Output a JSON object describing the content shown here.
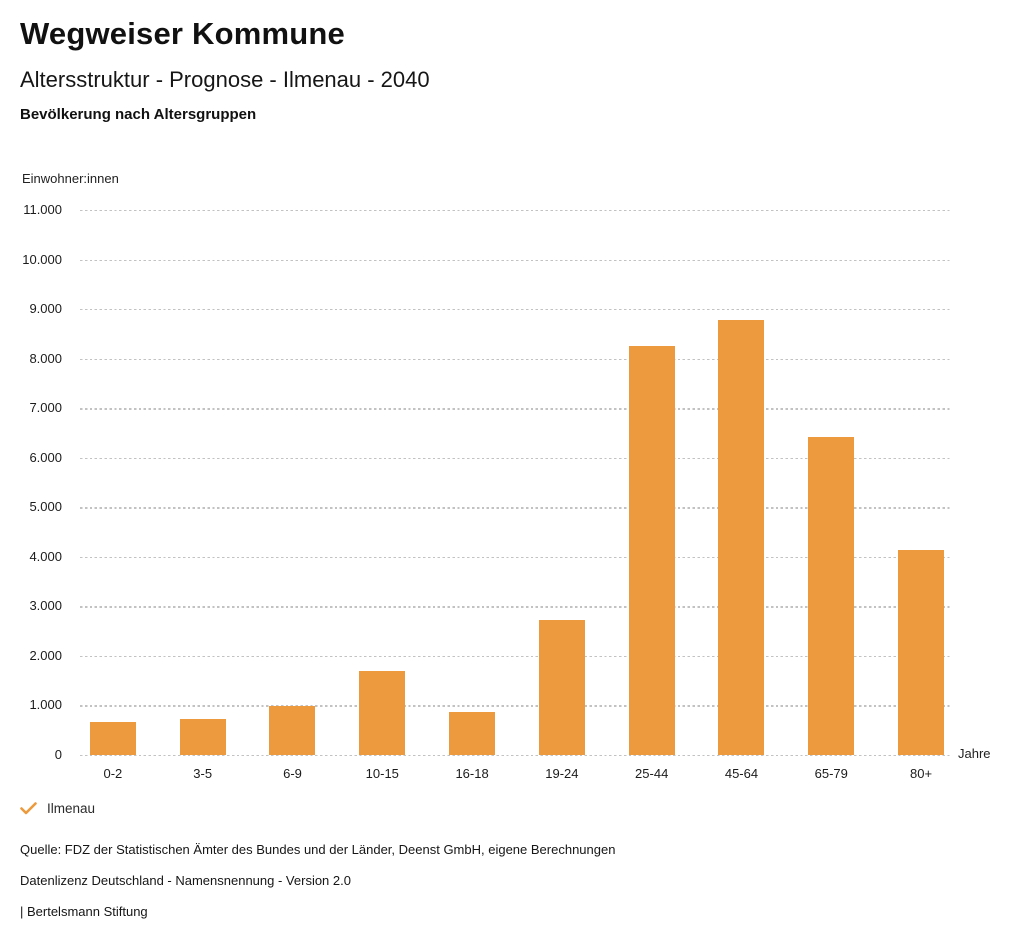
{
  "header": {
    "title": "Wegweiser Kommune",
    "subtitle": "Altersstruktur - Prognose - Ilmenau - 2040",
    "chart_heading": "Bevölkerung nach Altersgruppen"
  },
  "chart_data": {
    "type": "bar",
    "title": "Bevölkerung nach Altersgruppen",
    "categories": [
      "0-2",
      "3-5",
      "6-9",
      "10-15",
      "16-18",
      "19-24",
      "25-44",
      "45-64",
      "65-79",
      "80+"
    ],
    "series": [
      {
        "name": "Ilmenau",
        "values": [
          660,
          720,
          1000,
          1700,
          860,
          2720,
          8260,
          8790,
          6420,
          4140
        ]
      }
    ],
    "ylabel": "Einwohner:innen",
    "xlabel": "Jahre",
    "ylim": [
      0,
      11000
    ],
    "ytick_step": 1000,
    "grid": "horizontal-dotted",
    "legend_position": "bottom-left"
  },
  "axis": {
    "y_ticks": [
      "11.000",
      "10.000",
      "9.000",
      "8.000",
      "7.000",
      "6.000",
      "5.000",
      "4.000",
      "3.000",
      "2.000",
      "1.000",
      "0"
    ]
  },
  "legend": {
    "icon": "checkmark-icon",
    "label": "Ilmenau"
  },
  "footer": {
    "source": "Quelle: FDZ der Statistischen Ämter des Bundes und der Länder, Deenst GmbH, eigene Berechnungen",
    "license": "Datenlizenz Deutschland - Namensnennung - Version 2.0",
    "attribution": "| Bertelsmann Stiftung"
  },
  "colors": {
    "bar": "#EC9A3D",
    "grid": "#C2C2C2",
    "text": "#1A1A1A"
  }
}
